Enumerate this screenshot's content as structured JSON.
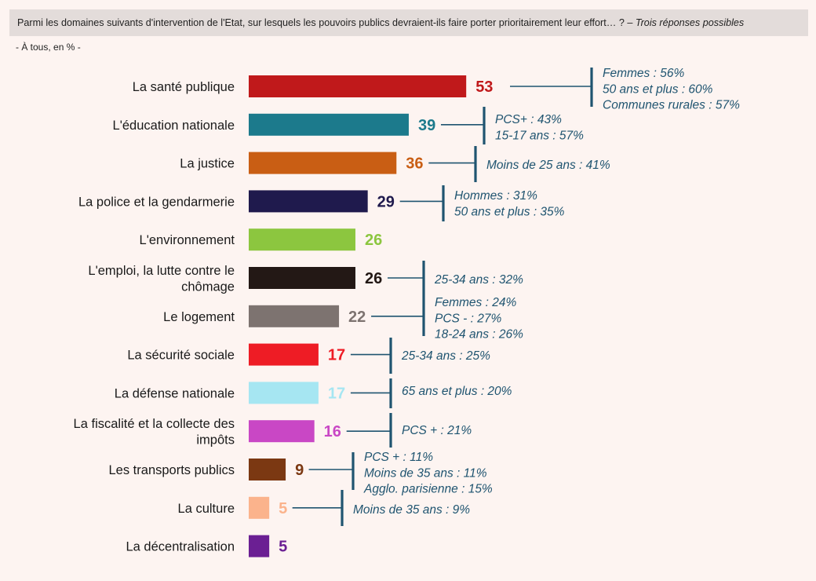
{
  "header": {
    "question": "Parmi les domaines suivants d'intervention de l'Etat, sur lesquels les pouvoirs publics devraient-ils faire porter prioritairement leur effort… ? – ",
    "note": "Trois réponses possibles"
  },
  "base": "- À tous, en % -",
  "colors": {
    "annotation": "#1f5470",
    "background": "#fdf4f1",
    "header_bg": "#e3dcda"
  },
  "chart_data": {
    "type": "bar",
    "orientation": "horizontal",
    "xlim": [
      0,
      100
    ],
    "grid": false,
    "categories": [
      [
        "La santé publique"
      ],
      [
        "L'éducation nationale"
      ],
      [
        "La justice"
      ],
      [
        "La police et la gendarmerie"
      ],
      [
        "L'environnement"
      ],
      [
        "L'emploi, la lutte contre le",
        "chômage"
      ],
      [
        "Le logement"
      ],
      [
        "La sécurité sociale"
      ],
      [
        "La défense nationale"
      ],
      [
        "La fiscalité et la collecte des",
        "impôts"
      ],
      [
        "Les transports publics"
      ],
      [
        "La culture"
      ],
      [
        "La décentralisation"
      ]
    ],
    "values": [
      53,
      39,
      36,
      29,
      26,
      26,
      22,
      17,
      17,
      16,
      9,
      5,
      5
    ],
    "bar_colors": [
      "#c0191b",
      "#1c7a8c",
      "#c95e14",
      "#1f1a4d",
      "#8cc63f",
      "#231815",
      "#7d7370",
      "#ee1c25",
      "#a6e6f2",
      "#c947c5",
      "#7b3812",
      "#fbb38c",
      "#6b1f93"
    ],
    "label_colors": [
      "#c0191b",
      "#1c7a8c",
      "#c95e14",
      "#1f1a4d",
      "#8cc63f",
      "#231815",
      "#7d7370",
      "#ee1c25",
      "#a6e6f2",
      "#c947c5",
      "#7b3812",
      "#fbb38c",
      "#6b1f93"
    ],
    "annotations": [
      {
        "bars": [
          0
        ],
        "lines": [
          "Femmes : 56%",
          "50 ans et plus : 60%",
          "Communes rurales : 57%"
        ]
      },
      {
        "bars": [
          1
        ],
        "lines": [
          "PCS+ : 43%",
          "15-17 ans : 57%"
        ]
      },
      {
        "bars": [
          2
        ],
        "lines": [
          "Moins de 25 ans : 41%"
        ]
      },
      {
        "bars": [
          3
        ],
        "lines": [
          "Hommes : 31%",
          "50 ans et plus : 35%"
        ]
      },
      {
        "bars": [
          5
        ],
        "lines": [
          "25-34 ans : 32%"
        ]
      },
      {
        "bars": [
          6
        ],
        "lines": [
          "Femmes : 24%",
          "PCS - : 27%",
          "18-24 ans : 26%"
        ]
      },
      {
        "bars": [
          7
        ],
        "lines": [
          "25-34 ans : 25%"
        ]
      },
      {
        "bars": [
          8
        ],
        "lines": [
          "65 ans et plus : 20%"
        ]
      },
      {
        "bars": [
          9
        ],
        "lines": [
          "PCS + : 21%"
        ]
      },
      {
        "bars": [
          10
        ],
        "lines": [
          "PCS + : 11%",
          "Moins de 35 ans : 11%",
          "Agglo. parisienne : 15%"
        ]
      },
      {
        "bars": [
          11
        ],
        "lines": [
          "Moins de 35 ans : 9%"
        ]
      }
    ]
  }
}
